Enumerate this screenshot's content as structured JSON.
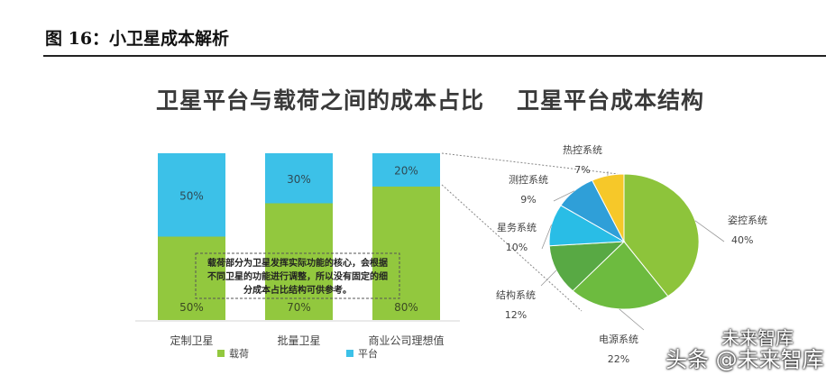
{
  "figure": {
    "title": "图 16：小卫星成本解析",
    "left_headline": "卫星平台与载荷之间的成本占比",
    "right_headline": "卫星平台成本结构"
  },
  "watermarks": {
    "top": "未来智库",
    "bottom": "头条 @未来智库"
  },
  "colors": {
    "payload": "#92c83e",
    "platform": "#3cc1e8",
    "pie": [
      "#8dc43b",
      "#6dbb3f",
      "#58a944",
      "#29bde6",
      "#2f9fd8",
      "#f6c829"
    ]
  },
  "chart_data": [
    {
      "type": "bar",
      "stacked": true,
      "categories": [
        "定制卫星",
        "批量卫星",
        "商业公司理想值"
      ],
      "series": [
        {
          "name": "载荷",
          "values": [
            50,
            70,
            80
          ],
          "labels": [
            "50%",
            "70%",
            "80%"
          ]
        },
        {
          "name": "平台",
          "values": [
            50,
            30,
            20
          ],
          "labels": [
            "50%",
            "30%",
            "20%"
          ]
        }
      ],
      "ylim": [
        0,
        100
      ],
      "legend": "bottom",
      "annotation": [
        "载荷部分为卫星发挥实际功能的核心，会根据",
        "不同卫星的功能进行调整，所以没有固定的细",
        "分成本占比结构可供参考。"
      ]
    },
    {
      "type": "pie",
      "labels": [
        "姿控系统",
        "电源系统",
        "结构系统",
        "星务系统",
        "测控系统",
        "热控系统"
      ],
      "values": [
        40,
        22,
        12,
        10,
        9,
        7
      ],
      "value_labels": [
        "40%",
        "22%",
        "12%",
        "10%",
        "9%",
        "7%"
      ]
    }
  ]
}
